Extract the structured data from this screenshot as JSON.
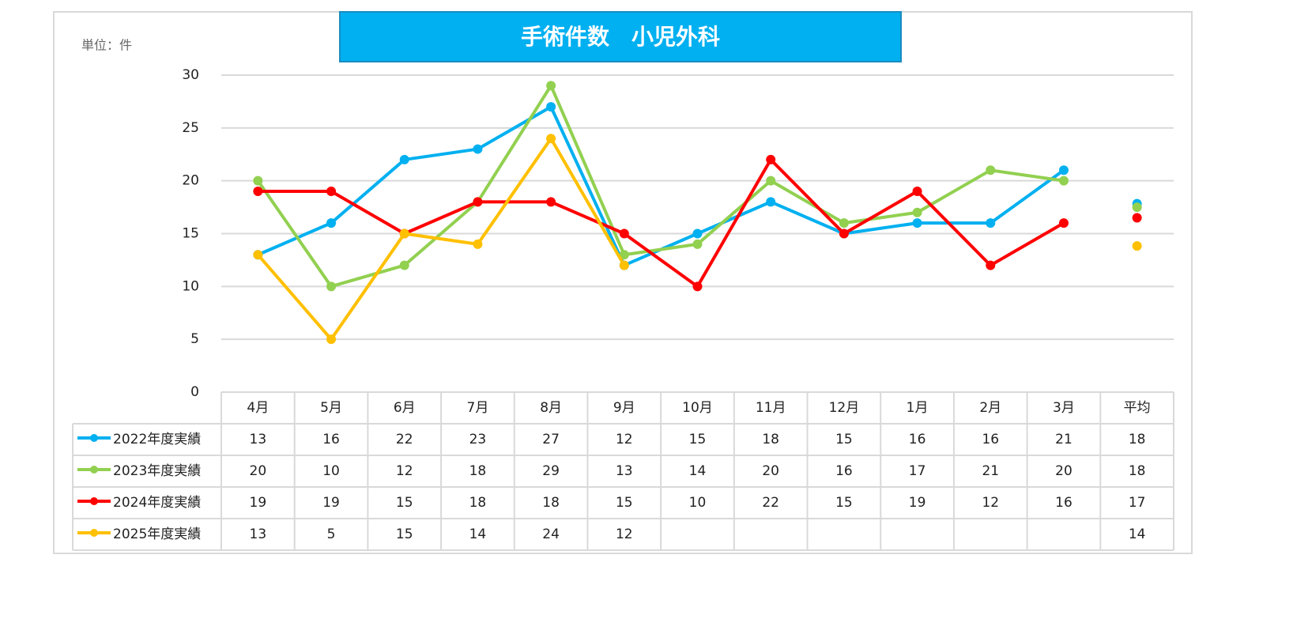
{
  "chart_data": {
    "type": "line",
    "title": "手術件数　小児外科",
    "unit_label": "単位：件",
    "categories": [
      "4月",
      "5月",
      "6月",
      "7月",
      "8月",
      "9月",
      "10月",
      "11月",
      "12月",
      "1月",
      "2月",
      "3月"
    ],
    "average_category": "平均",
    "series": [
      {
        "name": "2022年度実績",
        "color": "#00b0f0",
        "values": [
          13,
          16,
          22,
          23,
          27,
          12,
          15,
          18,
          15,
          16,
          16,
          21
        ],
        "average": 17.83,
        "average_label": "18"
      },
      {
        "name": "2023年度実績",
        "color": "#92d050",
        "values": [
          20,
          10,
          12,
          18,
          29,
          13,
          14,
          20,
          16,
          17,
          21,
          20
        ],
        "average": 17.5,
        "average_label": "18"
      },
      {
        "name": "2024年度実績",
        "color": "#ff0000",
        "values": [
          19,
          19,
          15,
          18,
          18,
          15,
          10,
          22,
          15,
          19,
          12,
          16
        ],
        "average": 16.5,
        "average_label": "17"
      },
      {
        "name": "2025年度実績",
        "color": "#ffc000",
        "values": [
          13,
          5,
          15,
          14,
          24,
          12,
          null,
          null,
          null,
          null,
          null,
          null
        ],
        "average": 13.83,
        "average_label": "14"
      }
    ],
    "ylim": [
      0,
      30
    ],
    "yticks": [
      0,
      5,
      10,
      15,
      20,
      25,
      30
    ],
    "grid": true
  }
}
